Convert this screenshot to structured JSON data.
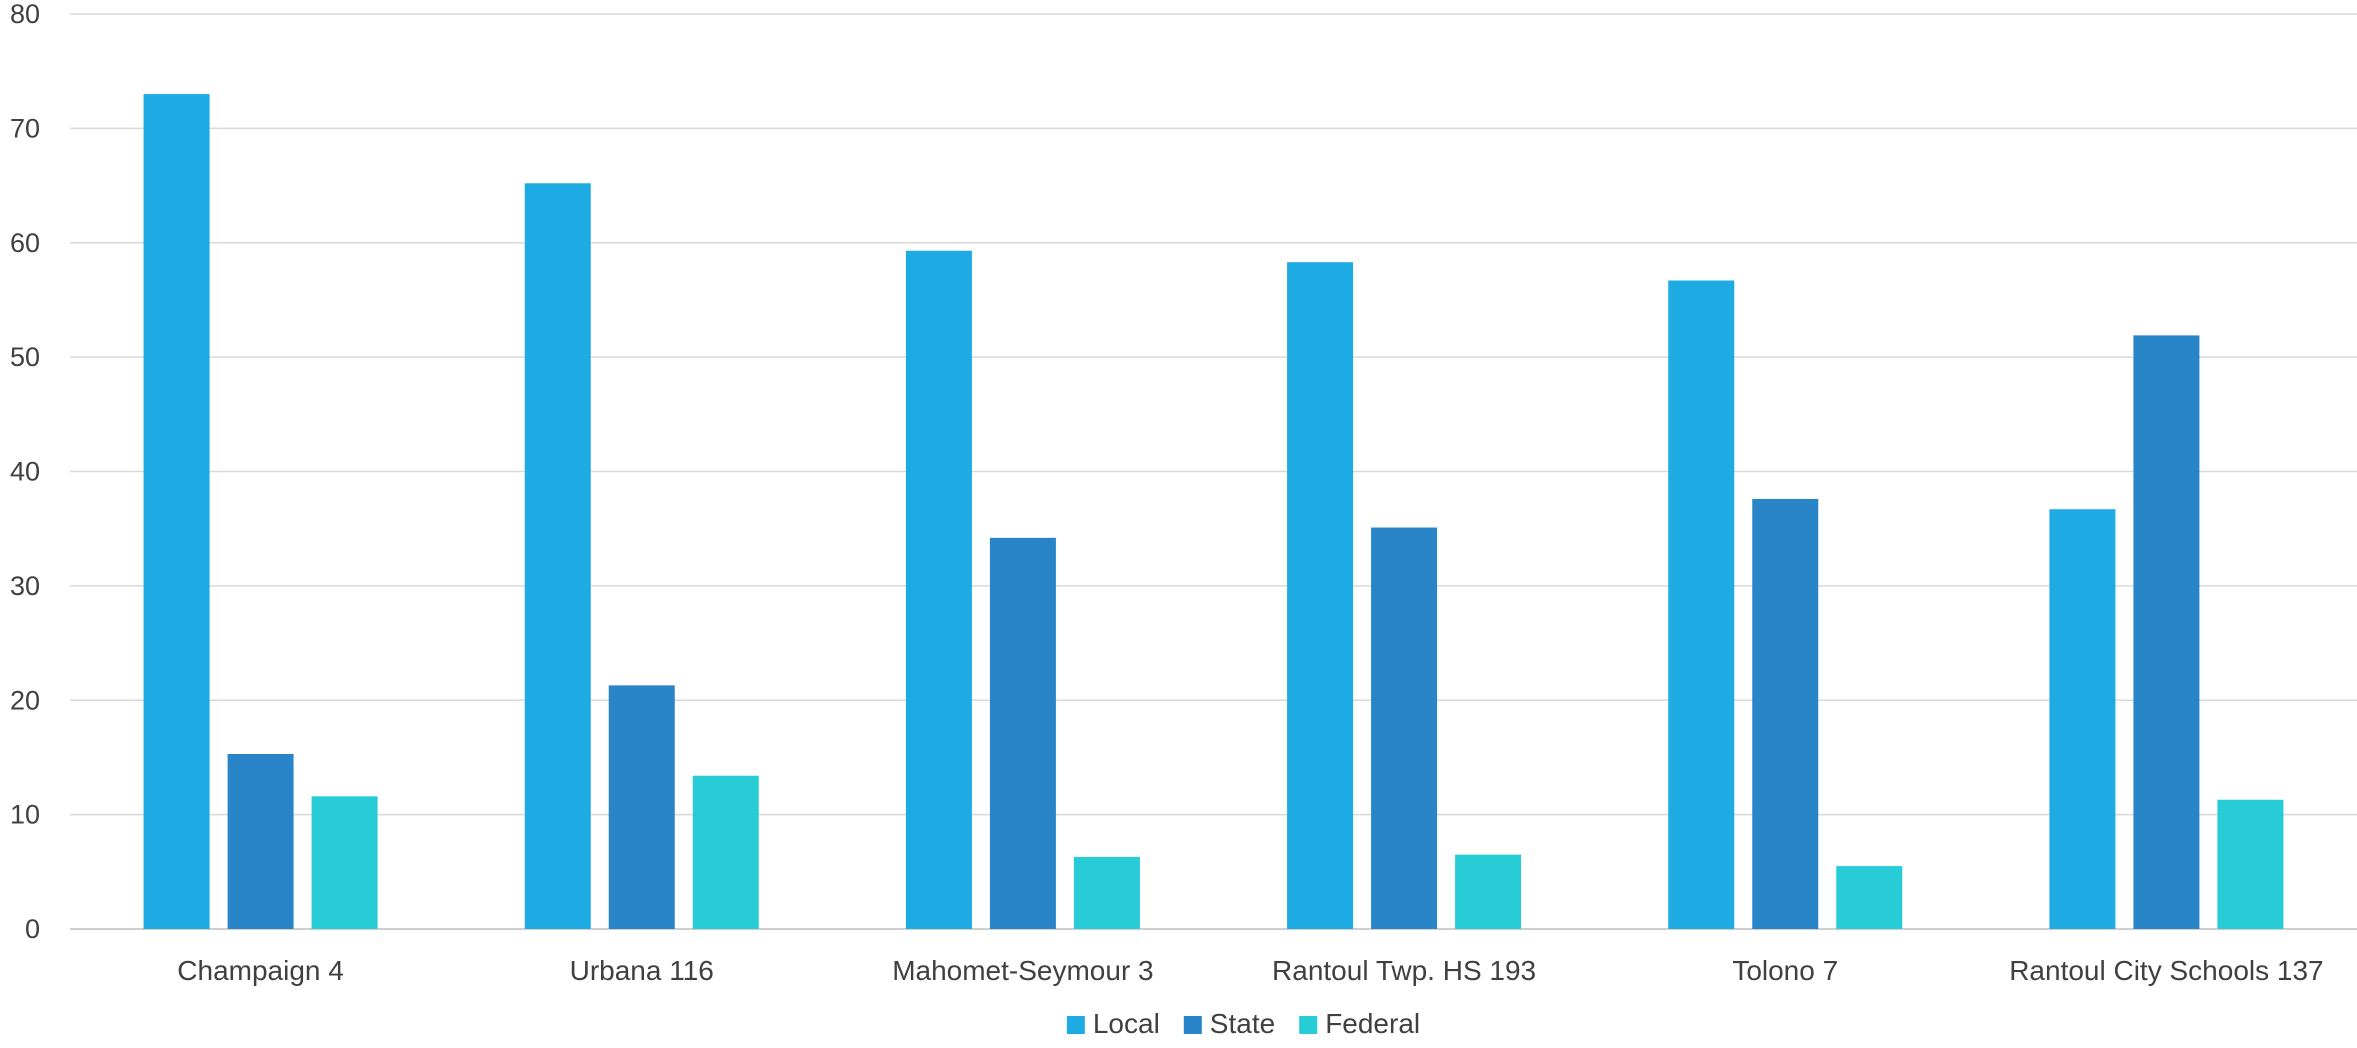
{
  "chart_data": {
    "type": "bar",
    "title": "",
    "xlabel": "",
    "ylabel": "",
    "ylim": [
      0,
      80
    ],
    "yticks": [
      0,
      10,
      20,
      30,
      40,
      50,
      60,
      70,
      80
    ],
    "grid": true,
    "legend_position": "bottom",
    "categories": [
      "Champaign 4",
      "Urbana 116",
      "Mahomet-Seymour 3",
      "Rantoul Twp. HS 193",
      "Tolono 7",
      "Rantoul City Schools 137"
    ],
    "series": [
      {
        "name": "Local",
        "color": "#1eabe3",
        "values": [
          73.0,
          65.2,
          59.3,
          58.3,
          56.7,
          36.7
        ]
      },
      {
        "name": "State",
        "color": "#2a84c8",
        "values": [
          15.3,
          21.3,
          34.2,
          35.1,
          37.6,
          51.9
        ]
      },
      {
        "name": "Federal",
        "color": "#27ccd6",
        "values": [
          11.6,
          13.4,
          6.3,
          6.5,
          5.5,
          11.3
        ]
      }
    ]
  }
}
